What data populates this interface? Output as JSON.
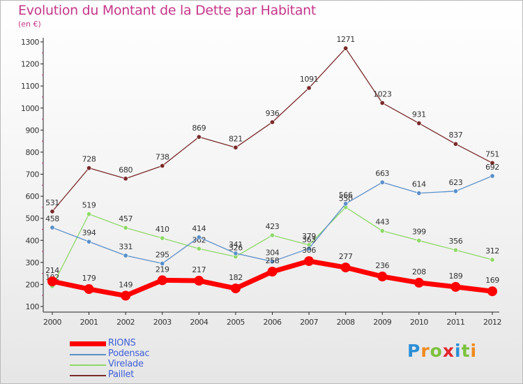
{
  "title": "Evolution du Montant de la Dette par Habitant",
  "subtitle": "(en €)",
  "logo": {
    "text": "Proxiti",
    "colors": [
      "#2b8fd6",
      "#f08a1d",
      "#7cc23e",
      "#e3262f",
      "#2b8fd6",
      "#7cc23e",
      "#f08a1d"
    ]
  },
  "chart_data": {
    "type": "line",
    "x": [
      "2000",
      "2001",
      "2002",
      "2003",
      "2004",
      "2005",
      "2006",
      "2007",
      "2008",
      "2009",
      "2010",
      "2011",
      "2012"
    ],
    "ylim": [
      100,
      1300
    ],
    "yticks": [
      100,
      200,
      300,
      400,
      500,
      600,
      700,
      800,
      900,
      1000,
      1100,
      1200,
      1300
    ],
    "grid": false,
    "legend_position": "bottom-left",
    "series": [
      {
        "name": "RIONS",
        "color": "#ff0000",
        "values": [
          214,
          179,
          149,
          219,
          217,
          182,
          258,
          306,
          277,
          236,
          208,
          189,
          169
        ]
      },
      {
        "name": "Podensac",
        "color": "#5b8fc9",
        "values": [
          458,
          394,
          331,
          295,
          414,
          341,
          304,
          363,
          566,
          663,
          614,
          623,
          692
        ]
      },
      {
        "name": "Virelade",
        "color": "#8fd96a",
        "values": [
          192,
          519,
          457,
          410,
          362,
          326,
          423,
          379,
          550,
          443,
          399,
          356,
          312
        ]
      },
      {
        "name": "Paillet",
        "color": "#7a2a2a",
        "values": [
          531,
          728,
          680,
          738,
          869,
          821,
          936,
          1091,
          1271,
          1023,
          931,
          837,
          751
        ]
      }
    ]
  }
}
